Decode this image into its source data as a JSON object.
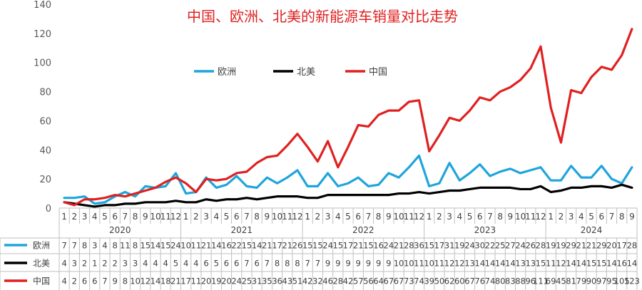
{
  "chart_data": {
    "type": "line",
    "title": "中国、欧洲、北美的新能源车销量对比走势",
    "ylim": [
      0,
      140
    ],
    "yticks": [
      0,
      20,
      40,
      60,
      80,
      100,
      120,
      140
    ],
    "grid": false,
    "legend_position": "top-left",
    "years": [
      {
        "label": "2020",
        "start": 0,
        "count": 12
      },
      {
        "label": "2021",
        "start": 12,
        "count": 12
      },
      {
        "label": "2022",
        "start": 24,
        "count": 12
      },
      {
        "label": "2023",
        "start": 36,
        "count": 12
      },
      {
        "label": "2024",
        "start": 48,
        "count": 9
      }
    ],
    "months": [
      "1",
      "2",
      "3",
      "4",
      "5",
      "6",
      "7",
      "8",
      "9",
      "10",
      "11",
      "12",
      "1",
      "2",
      "3",
      "4",
      "5",
      "6",
      "7",
      "8",
      "9",
      "10",
      "11",
      "12",
      "1",
      "2",
      "3",
      "4",
      "5",
      "6",
      "7",
      "8",
      "9",
      "10",
      "11",
      "12",
      "1",
      "2",
      "3",
      "4",
      "5",
      "6",
      "7",
      "8",
      "9",
      "10",
      "11",
      "12",
      "1",
      "2",
      "3",
      "4",
      "5",
      "6",
      "7",
      "8",
      "9"
    ],
    "series": [
      {
        "name": "欧洲",
        "color": "#1fa5dc",
        "values": [
          7,
          7,
          8,
          3,
          4,
          8,
          11,
          8,
          15,
          14,
          15,
          24,
          10,
          11,
          21,
          14,
          16,
          22,
          15,
          14,
          21,
          17,
          21,
          26,
          15,
          15,
          24,
          15,
          17,
          21,
          15,
          16,
          24,
          21,
          28,
          36,
          15,
          17,
          31,
          19,
          24,
          30,
          22,
          25,
          27,
          24,
          26,
          28,
          19,
          19,
          29,
          21,
          21,
          29,
          20,
          17,
          28
        ],
        "row": [
          "7",
          "7",
          "8",
          "3",
          "4",
          "8",
          "11",
          "8",
          "15",
          "14",
          "15",
          "24",
          "10",
          "11",
          "21",
          "14",
          "16",
          "22",
          "15",
          "14",
          "21",
          "17",
          "21",
          "26",
          "15",
          "15",
          "24",
          "15",
          "17",
          "21",
          "15",
          "16",
          "24",
          "21",
          "28",
          "36",
          "15",
          "17",
          "31",
          "19",
          "24",
          "30",
          "22",
          "25",
          "27",
          "24",
          "26",
          "28",
          "19",
          "19",
          "29",
          "21",
          "21",
          "29",
          "20",
          "17",
          "28"
        ]
      },
      {
        "name": "北美",
        "color": "#000000",
        "values": [
          4,
          3,
          2,
          1,
          2,
          2,
          3,
          3,
          4,
          4,
          4,
          5,
          4,
          4,
          6,
          5,
          6,
          6,
          7,
          6,
          7,
          8,
          8,
          8,
          7,
          7,
          9,
          9,
          9,
          9,
          9,
          9,
          9,
          10,
          10,
          11,
          10,
          11,
          12,
          12,
          13,
          14,
          14,
          14,
          14,
          13,
          13,
          15,
          11,
          12,
          14,
          14,
          15,
          15,
          14,
          16,
          14
        ],
        "row": [
          "4",
          "3",
          "2",
          "1",
          "2",
          "2",
          "3",
          "3",
          "4",
          "4",
          "4",
          "5",
          "4",
          "4",
          "6",
          "5",
          "6",
          "6",
          "7",
          "6",
          "7",
          "8",
          "8",
          "8",
          "7",
          "7",
          "9",
          "9",
          "9",
          "9",
          "9",
          "9",
          "9",
          "10",
          "10",
          "11",
          "10",
          "11",
          "12",
          "12",
          "13",
          "14",
          "14",
          "14",
          "14",
          "13",
          "13",
          "15",
          "11",
          "12",
          "14",
          "14",
          "15",
          "15",
          "14",
          "16",
          "14"
        ]
      },
      {
        "name": "中国",
        "color": "#e02020",
        "values": [
          4,
          2,
          6,
          6,
          7,
          9,
          8,
          10,
          12,
          14,
          18,
          21,
          17,
          11,
          20,
          19,
          20,
          24,
          25,
          31,
          35,
          36,
          43,
          51,
          42,
          32,
          46,
          28,
          42,
          57,
          56,
          64,
          67,
          67,
          73,
          74,
          39,
          50,
          62,
          60,
          67,
          76,
          74,
          80,
          83,
          88,
          96,
          111,
          69,
          45,
          81,
          79,
          90,
          97,
          95,
          105,
          123
        ],
        "row": [
          "4",
          "2",
          "6",
          "6",
          "7",
          "9",
          "8",
          "10",
          "12",
          "14",
          "18",
          "21",
          "17",
          "11",
          "20",
          "19",
          "20",
          "24",
          "25",
          "31",
          "35",
          "36",
          "43",
          "51",
          "42",
          "32",
          "46",
          "28",
          "42",
          "57",
          "56",
          "64",
          "67",
          "67",
          "73",
          "74",
          "39",
          "50",
          "62",
          "60",
          "67",
          "76",
          "74",
          "80",
          "83",
          "88",
          "96",
          "111",
          "69",
          "45",
          "81",
          "79",
          "90",
          "97",
          "95",
          "105",
          "123"
        ]
      }
    ]
  }
}
